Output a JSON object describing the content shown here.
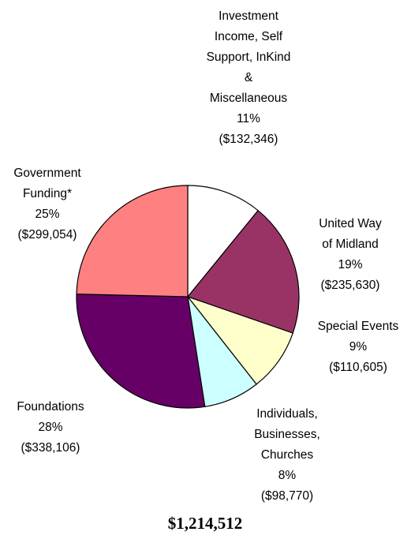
{
  "chart_data": {
    "type": "pie",
    "total_label": "$1,214,512",
    "slices": [
      {
        "name": "Investment Income, Self Support, InKind & Miscellaneous",
        "label_lines": [
          "Investment",
          "Income, Self",
          "Support, InKind",
          "&",
          "Miscellaneous",
          "11%",
          "($132,346)"
        ],
        "percent": 11,
        "amount": 132346,
        "color": "#ffffff"
      },
      {
        "name": "United Way of Midland",
        "label_lines": [
          "United Way",
          "of Midland",
          "19%",
          "($235,630)"
        ],
        "percent": 19,
        "amount": 235630,
        "color": "#993366"
      },
      {
        "name": "Special Events",
        "label_lines": [
          "Special Events",
          "9%",
          "($110,605)"
        ],
        "percent": 9,
        "amount": 110605,
        "color": "#ffffcc"
      },
      {
        "name": "Individuals, Businesses, Churches",
        "label_lines": [
          "Individuals,",
          "Businesses,",
          "Churches",
          "8%",
          "($98,770)"
        ],
        "percent": 8,
        "amount": 98770,
        "color": "#ccffff"
      },
      {
        "name": "Foundations",
        "label_lines": [
          "Foundations",
          "28%",
          "($338,106)"
        ],
        "percent": 28,
        "amount": 338106,
        "color": "#660066"
      },
      {
        "name": "Government Funding*",
        "label_lines": [
          "Government",
          "Funding*",
          "25%",
          "($299,054)"
        ],
        "percent": 25,
        "amount": 299054,
        "color": "#ff8080"
      }
    ]
  }
}
